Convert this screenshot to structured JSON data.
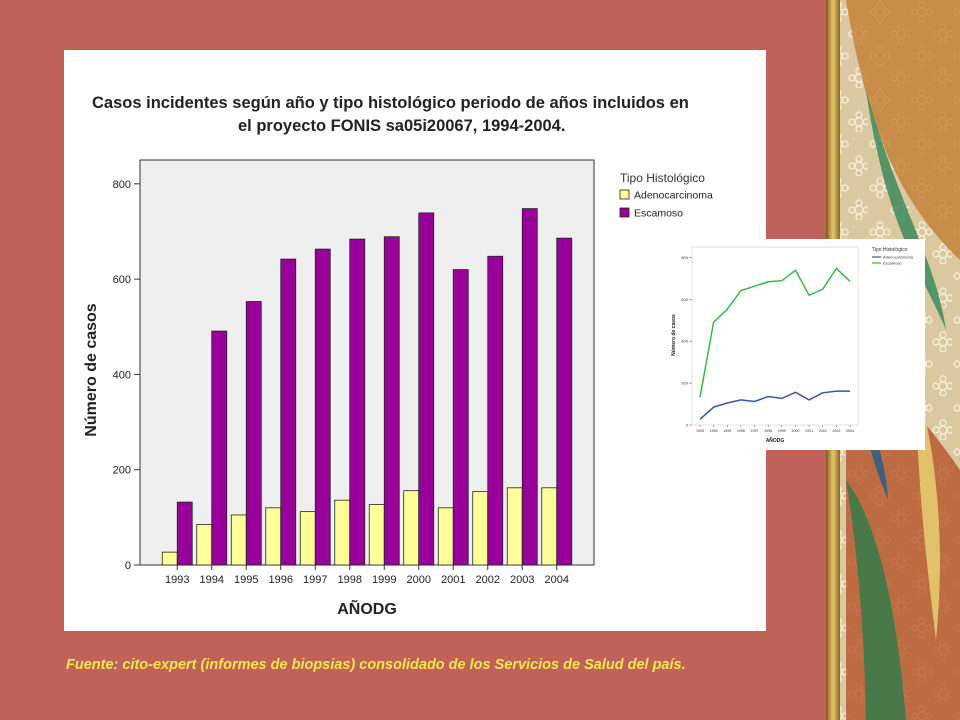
{
  "slide": {
    "footnote": "Fuente: cito-expert (informes de biopsias) consolidado de los Servicios de Salud del país."
  },
  "colors": {
    "background": "#c0625a",
    "adenocarcinoma": "#ffff99",
    "escamoso": "#990099",
    "inset_adenocarcinoma": "#3355aa",
    "inset_escamoso": "#33bb44",
    "footnote": "#f2e94a"
  },
  "chart_data": [
    {
      "type": "bar",
      "title": "Casos incidentes según año y tipo histológico periodo de años incluidos en el proyecto FONIS sa05i20067, 1994-2004.",
      "title_lines": [
        "Casos incidentes según año y tipo histológico periodo de años incluidos en",
        "el proyecto FONIS sa05i20067, 1994-2004."
      ],
      "xlabel": "AÑODG",
      "ylabel": "Número de casos",
      "legend_title": "Tipo Histológico",
      "legend_position": "right",
      "categories": [
        "1993",
        "1994",
        "1995",
        "1996",
        "1997",
        "1998",
        "1999",
        "2000",
        "2001",
        "2002",
        "2003",
        "2004"
      ],
      "series": [
        {
          "name": "Adenocarcinoma",
          "values": [
            27,
            85,
            105,
            120,
            112,
            136,
            127,
            156,
            120,
            154,
            162,
            162
          ]
        },
        {
          "name": "Escamoso",
          "values": [
            132,
            491,
            553,
            642,
            663,
            684,
            689,
            739,
            620,
            648,
            748,
            686
          ]
        }
      ],
      "ylim": [
        0,
        850
      ],
      "yticks": [
        0,
        200,
        400,
        600,
        800
      ],
      "grid": false
    },
    {
      "type": "line",
      "xlabel": "AÑODG",
      "ylabel": "Número de casos",
      "legend_title": "Tipo Histológico",
      "legend_position": "top-right",
      "categories": [
        "1993",
        "1994",
        "1995",
        "1996",
        "1997",
        "1998",
        "1999",
        "2000",
        "2001",
        "2002",
        "2003",
        "2004"
      ],
      "series": [
        {
          "name": "Adenocarcinoma",
          "values": [
            27,
            85,
            105,
            120,
            112,
            136,
            127,
            156,
            120,
            154,
            162,
            162
          ]
        },
        {
          "name": "Escamoso",
          "values": [
            132,
            491,
            553,
            642,
            663,
            684,
            689,
            739,
            620,
            648,
            748,
            686
          ]
        }
      ],
      "ylim": [
        0,
        850
      ],
      "yticks": [
        0,
        200,
        400,
        600,
        800
      ],
      "grid": false
    }
  ]
}
